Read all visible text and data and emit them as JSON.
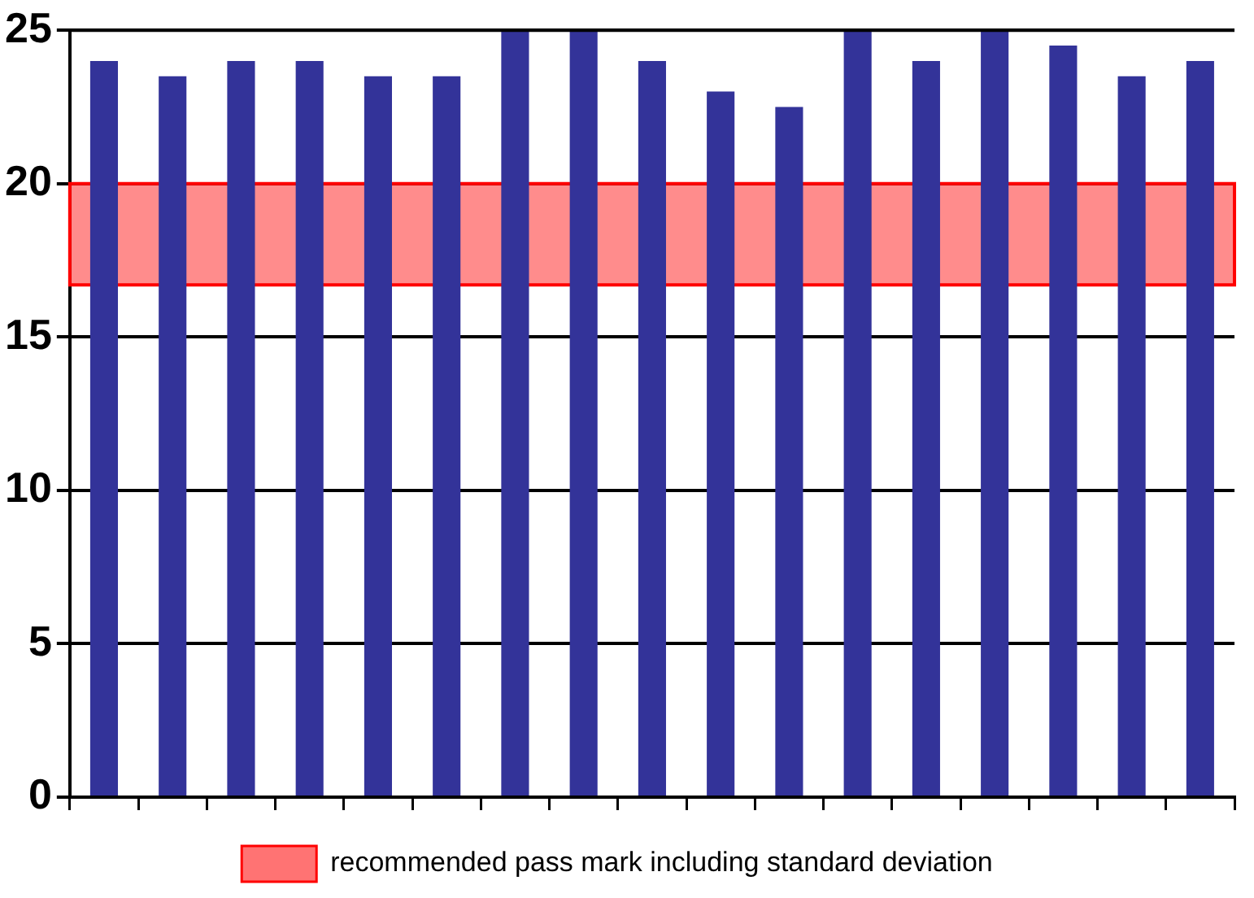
{
  "chart_data": {
    "type": "bar",
    "categories": [
      null,
      null,
      null,
      null,
      null,
      null,
      null,
      null,
      null,
      null,
      null,
      null,
      null,
      null,
      null,
      null,
      null
    ],
    "values": [
      24,
      23.5,
      24,
      24,
      23.5,
      23.5,
      25,
      25,
      24,
      23,
      22.5,
      25,
      24,
      25,
      24.5,
      23.5,
      24
    ],
    "color": "#333399",
    "ylim": [
      0,
      25
    ],
    "yticks": [
      0,
      5,
      10,
      15,
      20,
      25
    ],
    "grid": "y",
    "tick_labels": "y",
    "bands": [
      {
        "axis": "y",
        "from": 16.7,
        "to": 20,
        "label": "recommended pass mark including standard deviation",
        "color": "#ff0000"
      }
    ],
    "legend": "bottom"
  }
}
